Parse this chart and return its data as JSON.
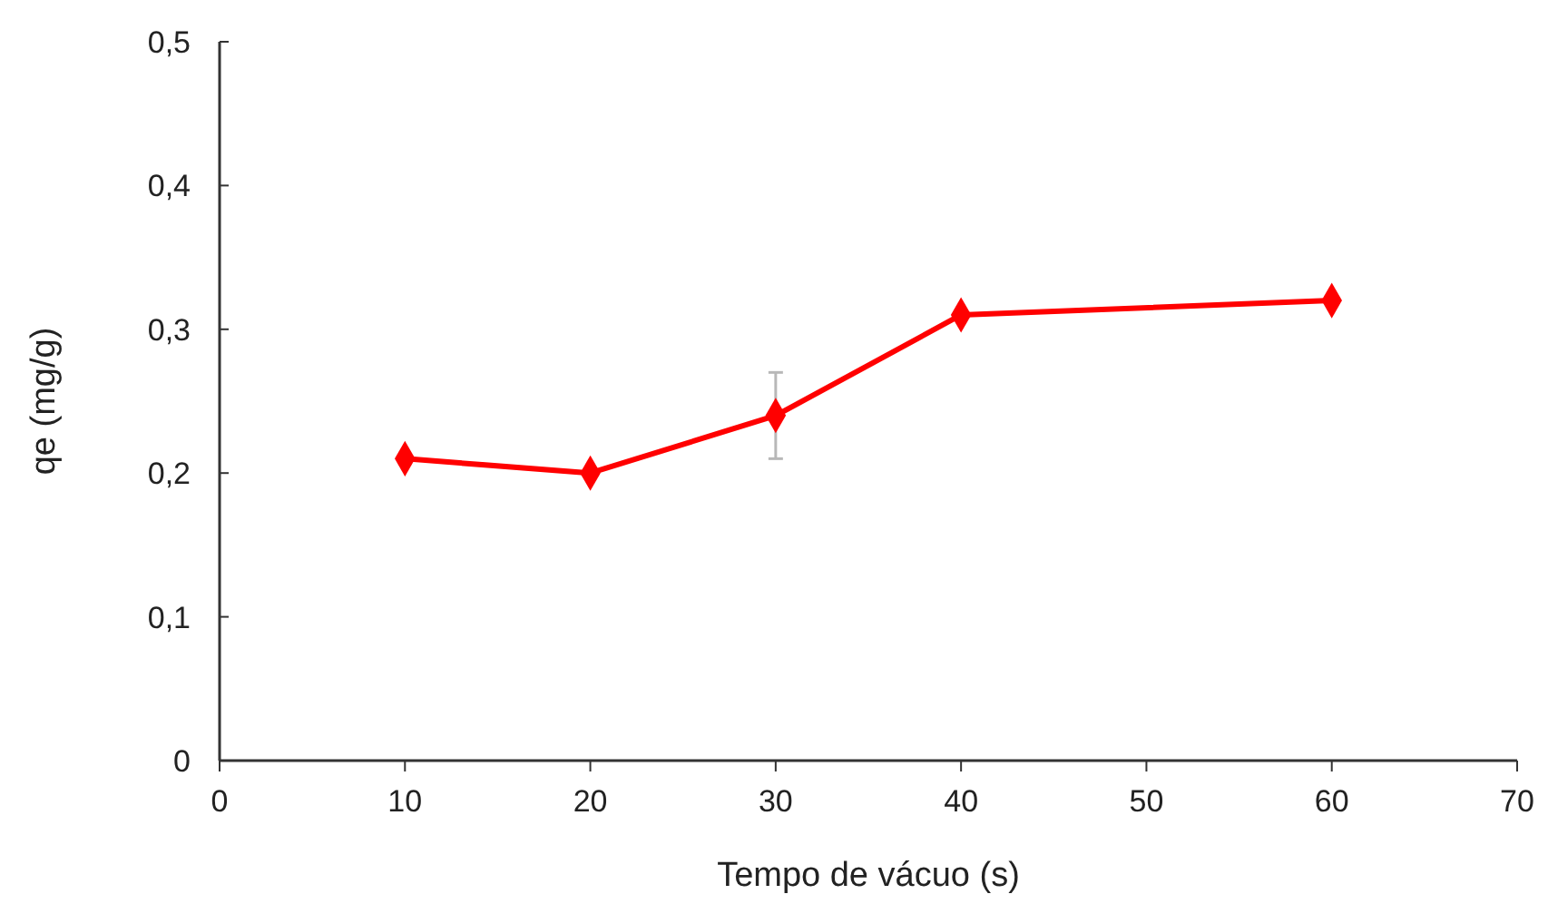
{
  "chart_data": {
    "type": "line",
    "xlabel": "Tempo de vácuo (s)",
    "ylabel": "qe (mg/g)",
    "x": [
      10,
      20,
      30,
      40,
      60
    ],
    "series": [
      {
        "color": "#ff0000",
        "values": [
          0.21,
          0.2,
          0.24,
          0.31,
          0.32
        ],
        "errors": [
          null,
          null,
          0.03,
          null,
          null
        ]
      }
    ],
    "xlim": [
      0,
      70
    ],
    "xticks": [
      0,
      10,
      20,
      30,
      40,
      50,
      60,
      70
    ],
    "ylim": [
      0,
      0.5
    ],
    "yticks": [
      {
        "value": 0,
        "label": "0"
      },
      {
        "value": 0.1,
        "label": "0,1"
      },
      {
        "value": 0.2,
        "label": "0,2"
      },
      {
        "value": 0.3,
        "label": "0,3"
      },
      {
        "value": 0.4,
        "label": "0,4"
      },
      {
        "value": 0.5,
        "label": "0,5"
      }
    ],
    "marker": "diamond",
    "line_style": "solid",
    "grid": false
  }
}
